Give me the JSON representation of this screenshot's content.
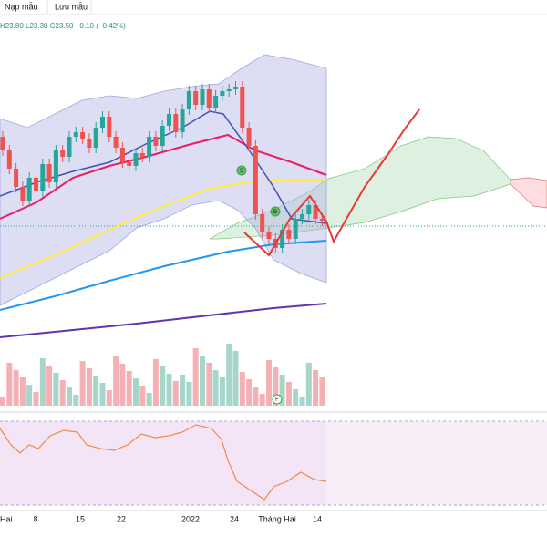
{
  "toolbar": {
    "items": [
      "Nạp mẫu",
      "Lưu mẫu"
    ]
  },
  "legend": {
    "ohlc": "H23.80 L23.30 C23.50 −0.10 (−0.42%)"
  },
  "markers": [
    "S",
    "B",
    "F"
  ],
  "x_axis": {
    "labels": [
      "Hai",
      "8",
      "15",
      "22",
      "2022",
      "24",
      "Tháng Hai",
      "14"
    ]
  }
}
